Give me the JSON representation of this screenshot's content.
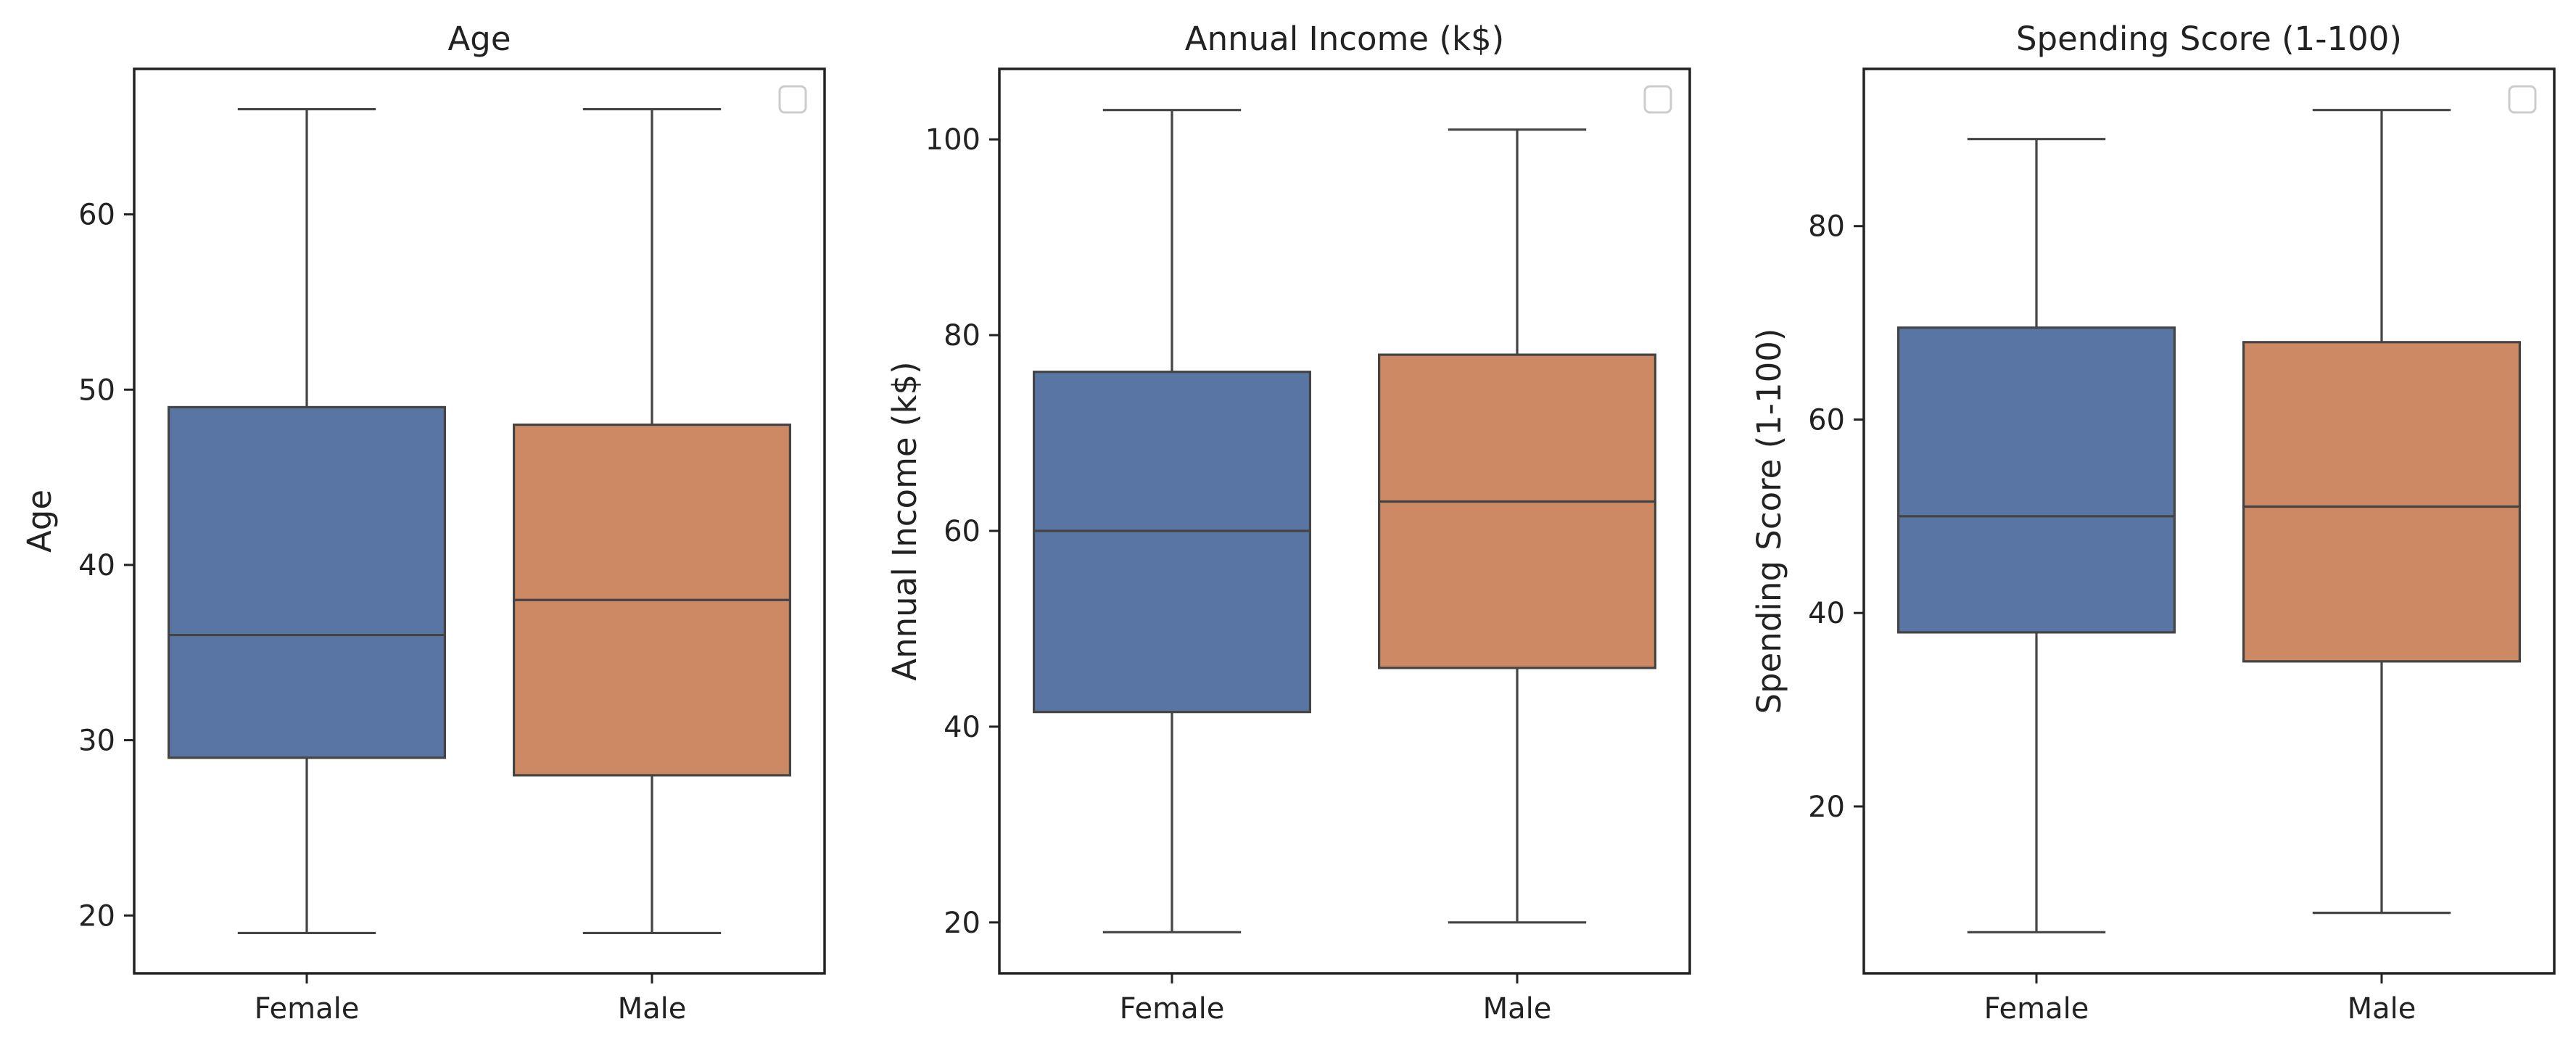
{
  "chart_data": [
    {
      "type": "box",
      "title": "Age",
      "xlabel": "",
      "ylabel": "Age",
      "categories": [
        "Female",
        "Male"
      ],
      "ylim": [
        16.7,
        68.3
      ],
      "yticks": [
        20,
        30,
        40,
        50,
        60
      ],
      "ytick_labels": [
        "20",
        "30",
        "40",
        "50",
        "60"
      ],
      "boxes": [
        {
          "category": "Female",
          "min": 19,
          "q1": 29,
          "median": 36,
          "q3": 49,
          "max": 66,
          "color": "#5875A4"
        },
        {
          "category": "Male",
          "min": 19,
          "q1": 28,
          "median": 38,
          "q3": 48,
          "max": 66,
          "color": "#CC8963"
        }
      ],
      "legend": {
        "placement": "upper-right",
        "entries": []
      }
    },
    {
      "type": "box",
      "title": "Annual Income (k$)",
      "xlabel": "",
      "ylabel": "Annual Income (k$)",
      "categories": [
        "Female",
        "Male"
      ],
      "ylim": [
        14.8,
        107.2
      ],
      "yticks": [
        20,
        40,
        60,
        80,
        100
      ],
      "ytick_labels": [
        "20",
        "40",
        "60",
        "80",
        "100"
      ],
      "boxes": [
        {
          "category": "Female",
          "min": 19,
          "q1": 41.5,
          "median": 60,
          "q3": 76.25,
          "max": 103,
          "color": "#5875A4"
        },
        {
          "category": "Male",
          "min": 20,
          "q1": 46,
          "median": 63,
          "q3": 78,
          "max": 101,
          "color": "#CC8963"
        }
      ],
      "legend": {
        "placement": "upper-right",
        "entries": []
      }
    },
    {
      "type": "box",
      "title": "Spending Score (1-100)",
      "xlabel": "",
      "ylabel": "Spending Score (1-100)",
      "categories": [
        "Female",
        "Male"
      ],
      "ylim": [
        2.75,
        96.25
      ],
      "yticks": [
        20,
        40,
        60,
        80
      ],
      "ytick_labels": [
        "20",
        "40",
        "60",
        "80"
      ],
      "boxes": [
        {
          "category": "Female",
          "min": 7,
          "q1": 38,
          "median": 50,
          "q3": 69.5,
          "max": 89,
          "color": "#5875A4"
        },
        {
          "category": "Male",
          "min": 9,
          "q1": 35,
          "median": 51,
          "q3": 68,
          "max": 92,
          "color": "#CC8963"
        }
      ],
      "legend": {
        "placement": "upper-right",
        "entries": []
      }
    }
  ],
  "style": {
    "axis_color": "#222222",
    "whisker_color": "#444444",
    "legend_border_color": "#cccccc"
  }
}
